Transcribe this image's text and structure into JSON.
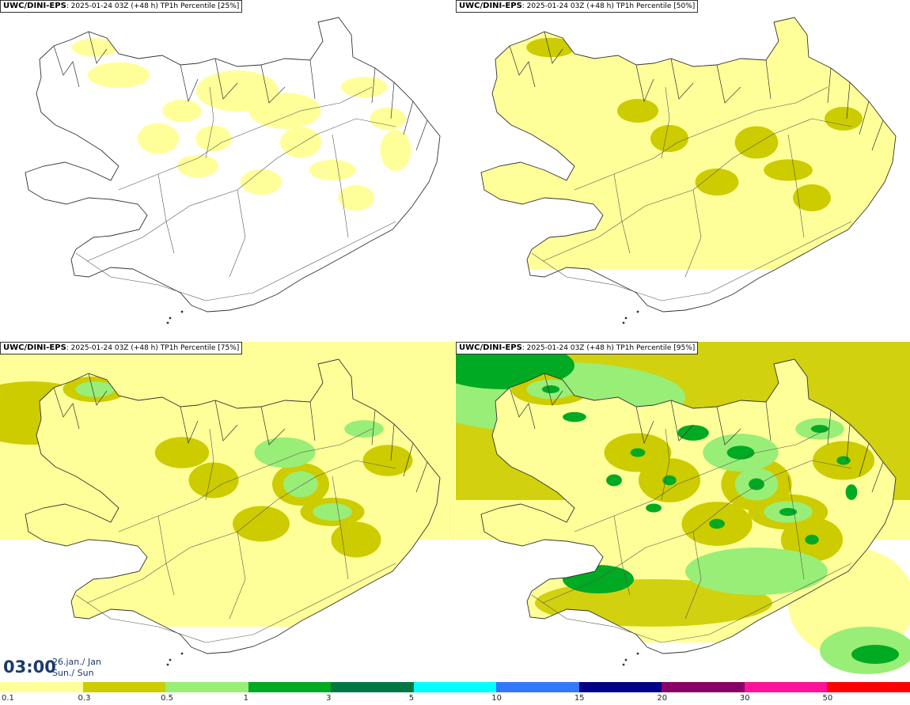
{
  "panels": [
    {
      "model": "UWC/DINI-EPS",
      "run": "2025-01-24 03Z (+48 h)",
      "field": "TP1h Percentile [25%]",
      "percentile": 25
    },
    {
      "model": "UWC/DINI-EPS",
      "run": "2025-01-24 03Z (+48 h)",
      "field": "TP1h Percentile [50%]",
      "percentile": 50
    },
    {
      "model": "UWC/DINI-EPS",
      "run": "2025-01-24 03Z (+48 h)",
      "field": "TP1h Percentile [75%]",
      "percentile": 75
    },
    {
      "model": "UWC/DINI-EPS",
      "run": "2025-01-24 03Z (+48 h)",
      "field": "TP1h Percentile [95%]",
      "percentile": 95
    }
  ],
  "valid_time": {
    "time": "03:00",
    "date": "26.jan./ Jan",
    "day": "Sun./ Sun"
  },
  "legend": {
    "thresholds": [
      "0.1",
      "0.3",
      "0.5",
      "1",
      "3",
      "5",
      "10",
      "15",
      "20",
      "30",
      "50"
    ],
    "colors": [
      "#ffff99",
      "#cccc00",
      "#99ee77",
      "#00aa22",
      "#007744",
      "#00ffff",
      "#3377ff",
      "#000088",
      "#880066",
      "#ff1199",
      "#ff0000"
    ]
  }
}
